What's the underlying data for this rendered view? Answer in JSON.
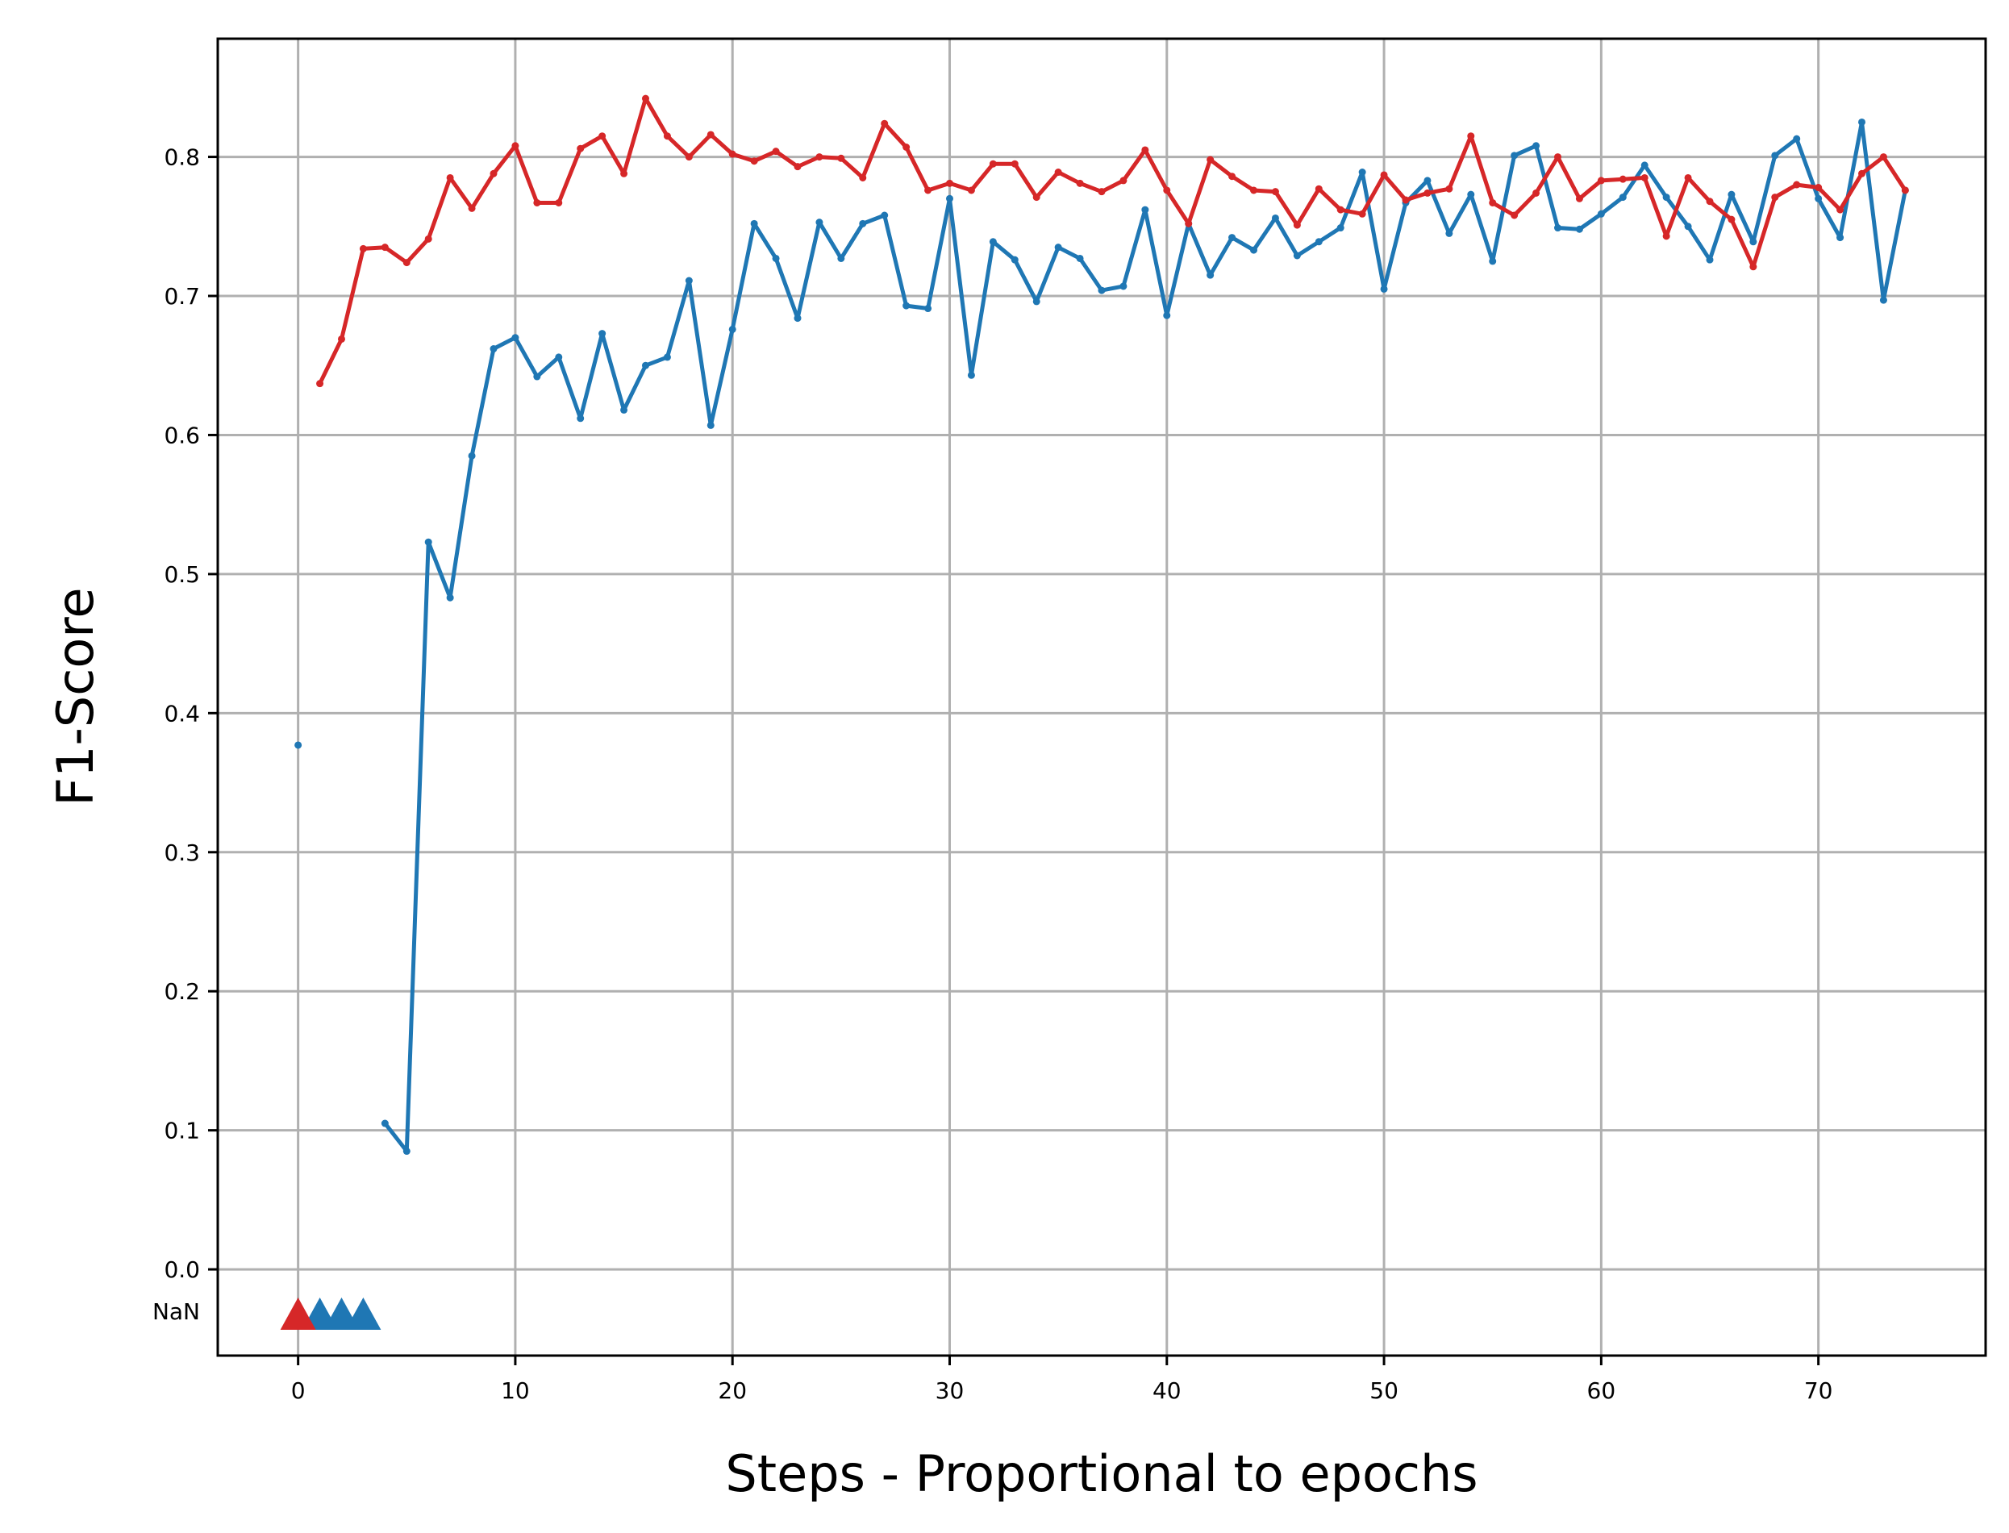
{
  "chart_data": {
    "type": "line",
    "title": "",
    "xlabel": "Steps - Proportional to epochs",
    "ylabel": "F1-Score",
    "xlim": [
      -3.7,
      77.7
    ],
    "ylim": [
      -0.062,
      0.885
    ],
    "xticks": [
      0,
      10,
      20,
      30,
      40,
      50,
      60,
      70
    ],
    "xtick_labels": [
      "0",
      "10",
      "20",
      "30",
      "40",
      "50",
      "60",
      "70"
    ],
    "yticks": [
      0.0,
      0.1,
      0.2,
      0.3,
      0.4,
      0.5,
      0.6,
      0.7,
      0.8
    ],
    "ytick_labels": [
      "0.0",
      "0.1",
      "0.2",
      "0.3",
      "0.4",
      "0.5",
      "0.6",
      "0.7",
      "0.8"
    ],
    "nan_label": "NaN",
    "nan_value": -0.03,
    "grid": true,
    "legend": "none",
    "colors": {
      "series1": "#1f77b4",
      "series2": "#d62728",
      "grid": "#b0b0b0",
      "frame": "#000000"
    },
    "series": [
      {
        "color": "#1f77b4",
        "x": [
          0,
          1,
          2,
          3,
          4,
          5,
          6,
          7,
          8,
          9,
          10,
          11,
          12,
          13,
          14,
          15,
          16,
          17,
          18,
          19,
          20,
          21,
          22,
          23,
          24,
          25,
          26,
          27,
          28,
          29,
          30,
          31,
          32,
          33,
          34,
          35,
          36,
          37,
          38,
          39,
          40,
          41,
          42,
          43,
          44,
          45,
          46,
          47,
          48,
          49,
          50,
          51,
          52,
          53,
          54,
          55,
          56,
          57,
          58,
          59,
          60,
          61,
          62,
          63,
          64,
          65,
          66,
          67,
          68,
          69,
          70,
          71,
          72,
          73,
          74
        ],
        "y": [
          0.377,
          null,
          null,
          null,
          0.105,
          0.085,
          0.523,
          0.483,
          0.585,
          0.662,
          0.67,
          0.642,
          0.656,
          0.612,
          0.673,
          0.618,
          0.65,
          0.656,
          0.711,
          0.607,
          0.676,
          0.752,
          0.727,
          0.684,
          0.753,
          0.727,
          0.752,
          0.758,
          0.693,
          0.691,
          0.77,
          0.643,
          0.739,
          0.726,
          0.696,
          0.735,
          0.727,
          0.704,
          0.707,
          0.762,
          0.686,
          0.752,
          0.715,
          0.742,
          0.733,
          0.756,
          0.729,
          0.739,
          0.749,
          0.789,
          0.705,
          0.767,
          0.783,
          0.745,
          0.773,
          0.725,
          0.801,
          0.808,
          0.749,
          0.748,
          0.759,
          0.771,
          0.794,
          0.771,
          0.75,
          0.726,
          0.773,
          0.739,
          0.801,
          0.813,
          0.77,
          0.742,
          0.825,
          0.697,
          0.776
        ],
        "nan_markers": [
          1,
          2,
          3
        ]
      },
      {
        "color": "#d62728",
        "x": [
          0,
          1,
          2,
          3,
          4,
          5,
          6,
          7,
          8,
          9,
          10,
          11,
          12,
          13,
          14,
          15,
          16,
          17,
          18,
          19,
          20,
          21,
          22,
          23,
          24,
          25,
          26,
          27,
          28,
          29,
          30,
          31,
          32,
          33,
          34,
          35,
          36,
          37,
          38,
          39,
          40,
          41,
          42,
          43,
          44,
          45,
          46,
          47,
          48,
          49,
          50,
          51,
          52,
          53,
          54,
          55,
          56,
          57,
          58,
          59,
          60,
          61,
          62,
          63,
          64,
          65,
          66,
          67,
          68,
          69,
          70,
          71,
          72,
          73,
          74
        ],
        "y": [
          null,
          0.637,
          0.669,
          0.734,
          0.735,
          0.724,
          0.741,
          0.785,
          0.763,
          0.788,
          0.808,
          0.767,
          0.767,
          0.806,
          0.815,
          0.788,
          0.842,
          0.815,
          0.8,
          0.816,
          0.802,
          0.797,
          0.804,
          0.793,
          0.8,
          0.799,
          0.785,
          0.824,
          0.807,
          0.776,
          0.781,
          0.776,
          0.795,
          0.795,
          0.771,
          0.789,
          0.781,
          0.775,
          0.783,
          0.805,
          0.776,
          0.752,
          0.798,
          0.786,
          0.776,
          0.775,
          0.751,
          0.777,
          0.762,
          0.759,
          0.787,
          0.769,
          0.774,
          0.777,
          0.815,
          0.767,
          0.758,
          0.774,
          0.8,
          0.77,
          0.783,
          0.784,
          0.785,
          0.743,
          0.785,
          0.768,
          0.755,
          0.721,
          0.771,
          0.78,
          0.778,
          0.762,
          0.788,
          0.8,
          0.776
        ],
        "nan_markers": [
          0
        ]
      }
    ]
  }
}
